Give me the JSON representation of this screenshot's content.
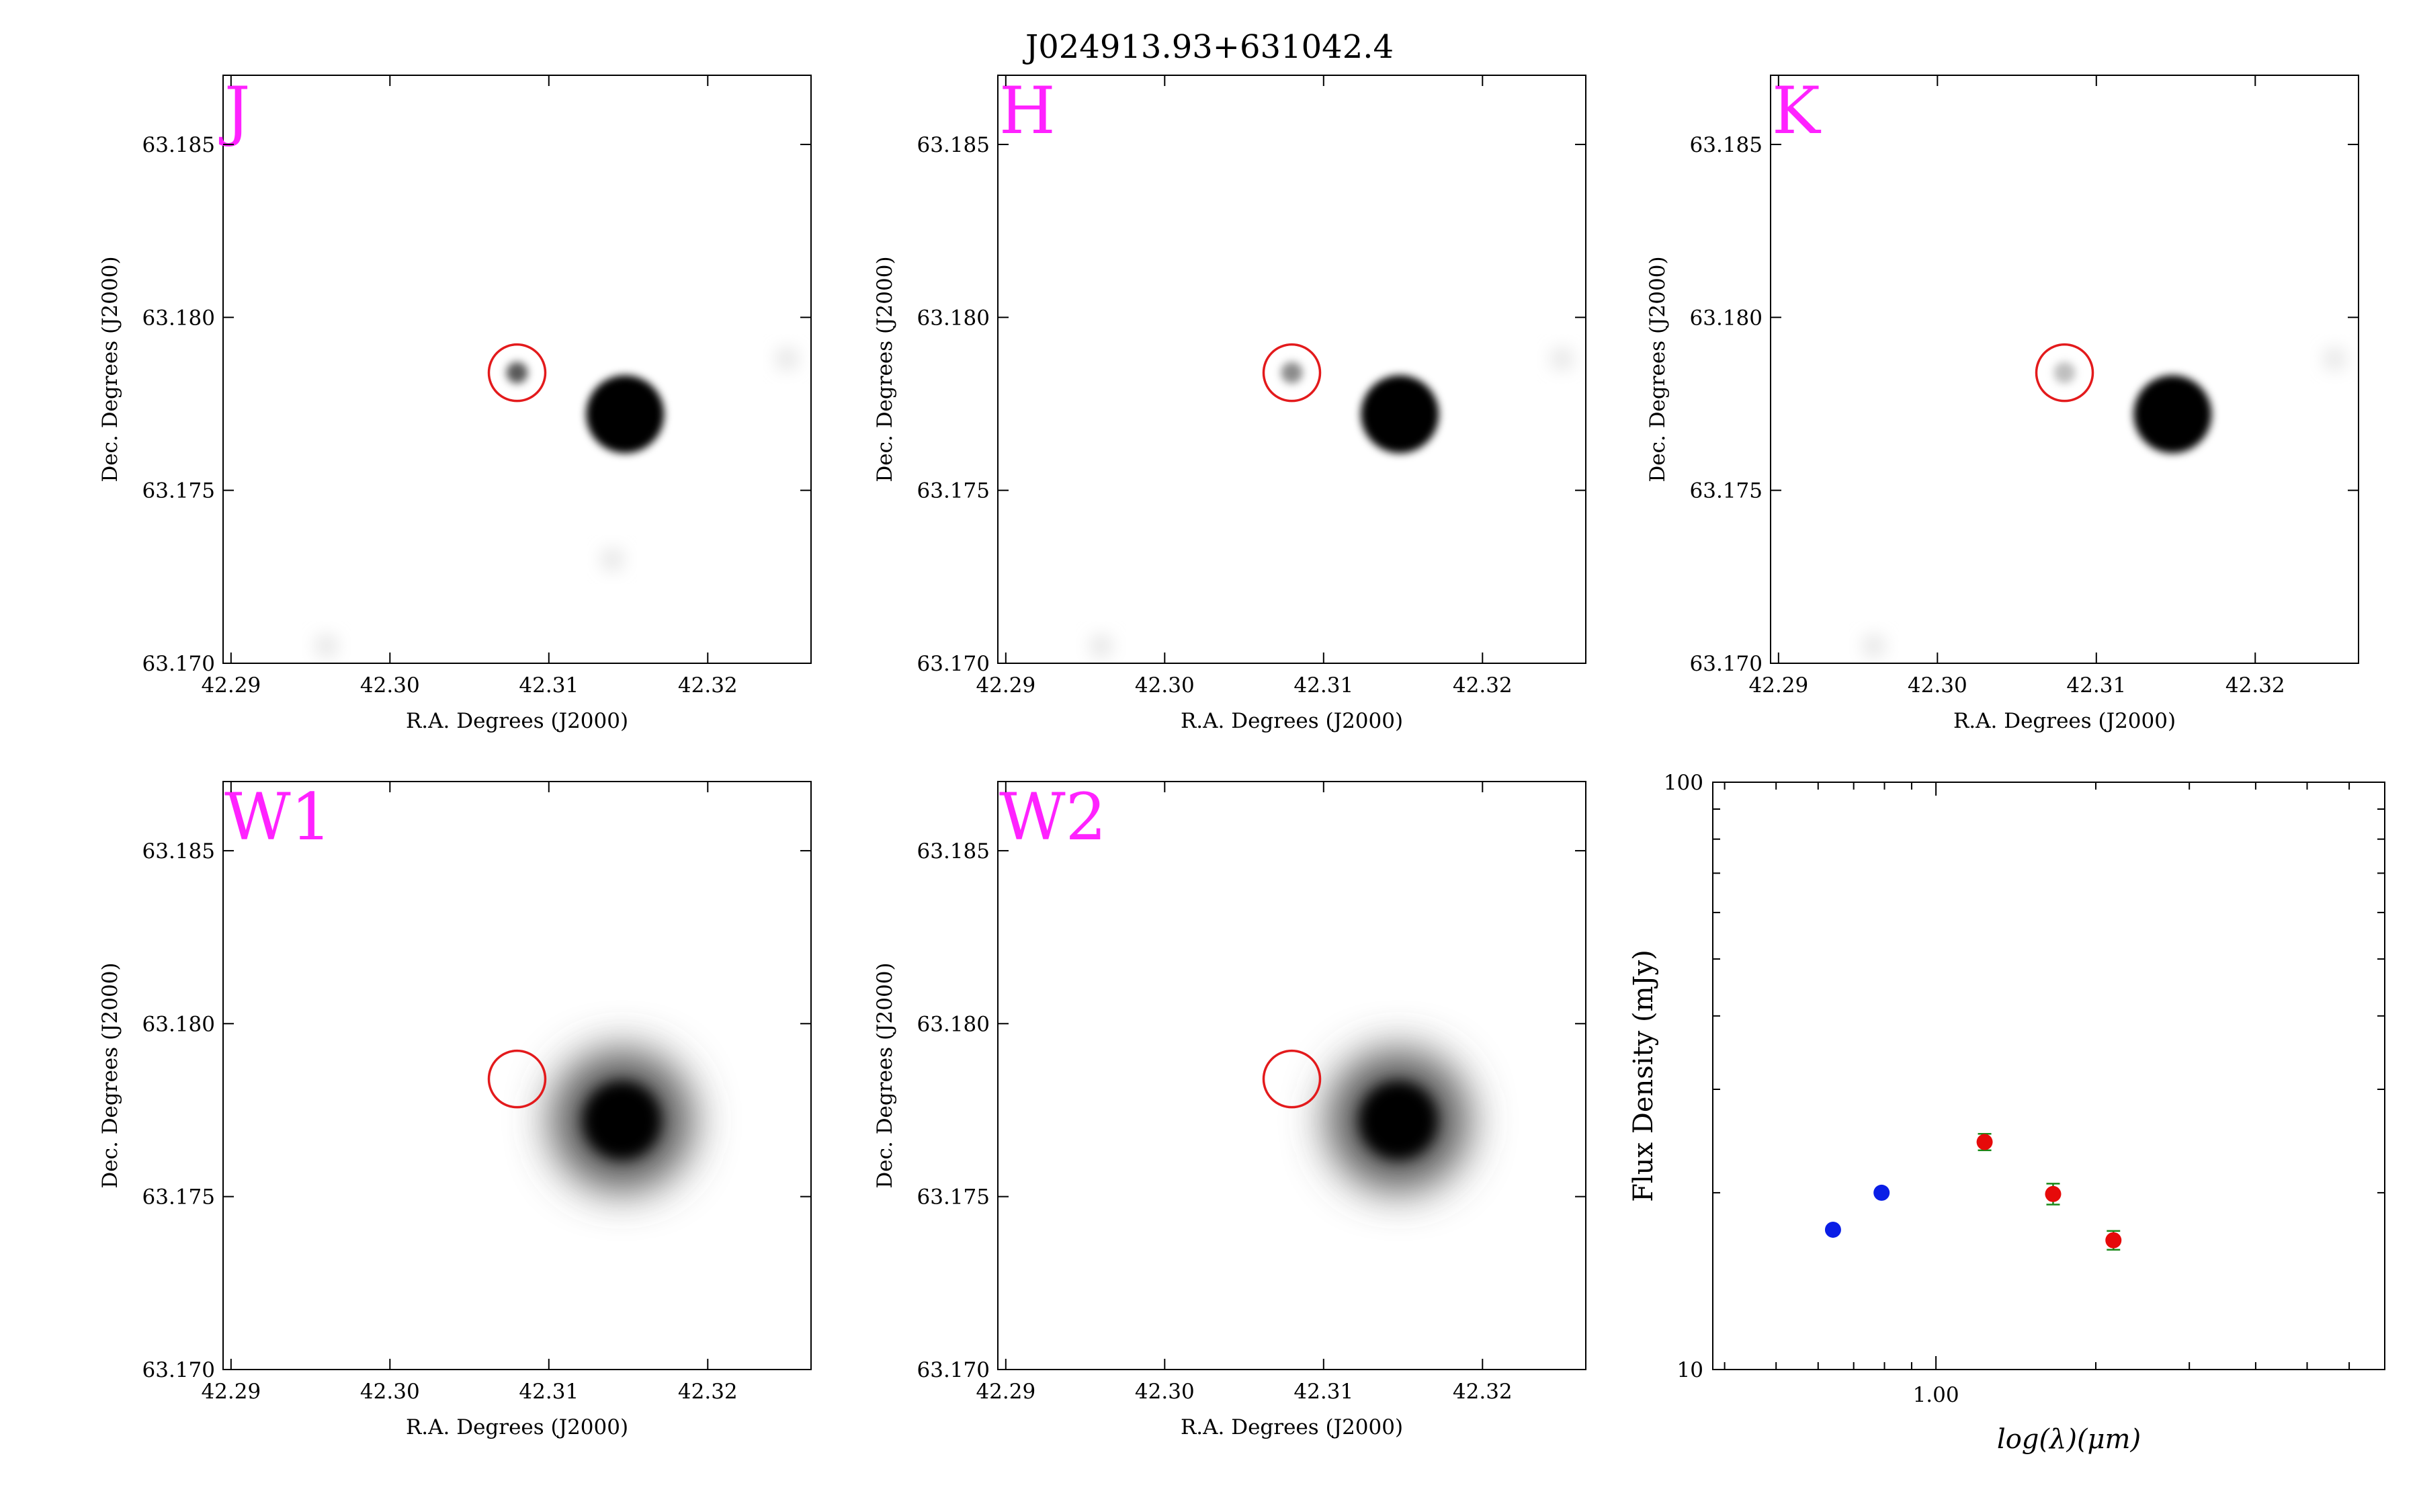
{
  "figure_title": "J024913.93+631042.4",
  "colors": {
    "band_label": "#ff22ff",
    "aperture_circle": "#e31a1c",
    "optical_points": "#0a1ee6",
    "ir_points": "#e60a0a",
    "error_bars": "#1a8a1a"
  },
  "chart_data": [
    {
      "type": "heatmap",
      "band": "J",
      "xlabel": "R.A. Degrees (J2000)",
      "ylabel": "Dec. Degrees (J2000)",
      "xticks": [
        "42.29",
        "42.30",
        "42.31",
        "42.32"
      ],
      "yticks": [
        "63.170",
        "63.175",
        "63.180",
        "63.185"
      ],
      "xlim": [
        42.2895,
        42.3265
      ],
      "ylim": [
        63.17,
        63.187
      ],
      "target": {
        "ra": 42.308,
        "dec": 63.1784,
        "intensity": 0.65
      },
      "bright_star": {
        "ra": 42.3148,
        "dec": 63.1772,
        "intensity": 1.0
      },
      "faint_sources": [
        {
          "ra": 42.296,
          "dec": 63.1705
        },
        {
          "ra": 42.325,
          "dec": 63.1788
        },
        {
          "ra": 42.314,
          "dec": 63.173
        }
      ]
    },
    {
      "type": "heatmap",
      "band": "H",
      "xlabel": "R.A. Degrees (J2000)",
      "ylabel": "Dec. Degrees (J2000)",
      "xticks": [
        "42.29",
        "42.30",
        "42.31",
        "42.32"
      ],
      "yticks": [
        "63.170",
        "63.175",
        "63.180",
        "63.185"
      ],
      "xlim": [
        42.2895,
        42.3265
      ],
      "ylim": [
        63.17,
        63.187
      ],
      "target": {
        "ra": 42.308,
        "dec": 63.1784,
        "intensity": 0.45
      },
      "bright_star": {
        "ra": 42.3148,
        "dec": 63.1772,
        "intensity": 1.0
      },
      "faint_sources": [
        {
          "ra": 42.296,
          "dec": 63.1705
        },
        {
          "ra": 42.325,
          "dec": 63.1788
        }
      ]
    },
    {
      "type": "heatmap",
      "band": "K",
      "xlabel": "R.A. Degrees (J2000)",
      "ylabel": "Dec. Degrees (J2000)",
      "xticks": [
        "42.29",
        "42.30",
        "42.31",
        "42.32"
      ],
      "yticks": [
        "63.170",
        "63.175",
        "63.180",
        "63.185"
      ],
      "xlim": [
        42.2895,
        42.3265
      ],
      "ylim": [
        63.17,
        63.187
      ],
      "target": {
        "ra": 42.308,
        "dec": 63.1784,
        "intensity": 0.25
      },
      "bright_star": {
        "ra": 42.3148,
        "dec": 63.1772,
        "intensity": 1.0
      },
      "faint_sources": [
        {
          "ra": 42.296,
          "dec": 63.1705
        },
        {
          "ra": 42.325,
          "dec": 63.1788
        }
      ]
    },
    {
      "type": "heatmap",
      "band": "W1",
      "xlabel": "R.A. Degrees (J2000)",
      "ylabel": "Dec. Degrees (J2000)",
      "xticks": [
        "42.29",
        "42.30",
        "42.31",
        "42.32"
      ],
      "yticks": [
        "63.170",
        "63.175",
        "63.180",
        "63.185"
      ],
      "xlim": [
        42.2895,
        42.3265
      ],
      "ylim": [
        63.17,
        63.187
      ],
      "target": {
        "ra": 42.308,
        "dec": 63.1784,
        "intensity": 0.0
      },
      "bright_star": {
        "ra": 42.3146,
        "dec": 63.1772,
        "intensity": 1.0
      },
      "faint_sources": []
    },
    {
      "type": "heatmap",
      "band": "W2",
      "xlabel": "R.A. Degrees (J2000)",
      "ylabel": "Dec. Degrees (J2000)",
      "xticks": [
        "42.29",
        "42.30",
        "42.31",
        "42.32"
      ],
      "yticks": [
        "63.170",
        "63.175",
        "63.180",
        "63.185"
      ],
      "xlim": [
        42.2895,
        42.3265
      ],
      "ylim": [
        63.17,
        63.187
      ],
      "target": {
        "ra": 42.308,
        "dec": 63.1784,
        "intensity": 0.0
      },
      "bright_star": {
        "ra": 42.3147,
        "dec": 63.1772,
        "intensity": 1.0
      },
      "faint_sources": []
    },
    {
      "type": "scatter",
      "xlabel": "log(λ)(μm)",
      "ylabel": "Flux Density (mJy)",
      "xscale": "log",
      "yscale": "log",
      "xlim": [
        0.38,
        7.0
      ],
      "ylim": [
        10,
        100
      ],
      "xticks": [
        "1.00"
      ],
      "yticks": [
        "10",
        "100"
      ],
      "series": [
        {
          "color": "#0a1ee6",
          "points": [
            {
              "x": 0.64,
              "y": 17.3
            },
            {
              "x": 0.79,
              "y": 20.0
            }
          ]
        },
        {
          "color": "#e60a0a",
          "points": [
            {
              "x": 1.235,
              "y": 24.4,
              "err": 0.4
            },
            {
              "x": 1.662,
              "y": 19.9,
              "err": 0.5
            },
            {
              "x": 2.159,
              "y": 16.6,
              "err": 0.35
            }
          ]
        }
      ]
    }
  ]
}
